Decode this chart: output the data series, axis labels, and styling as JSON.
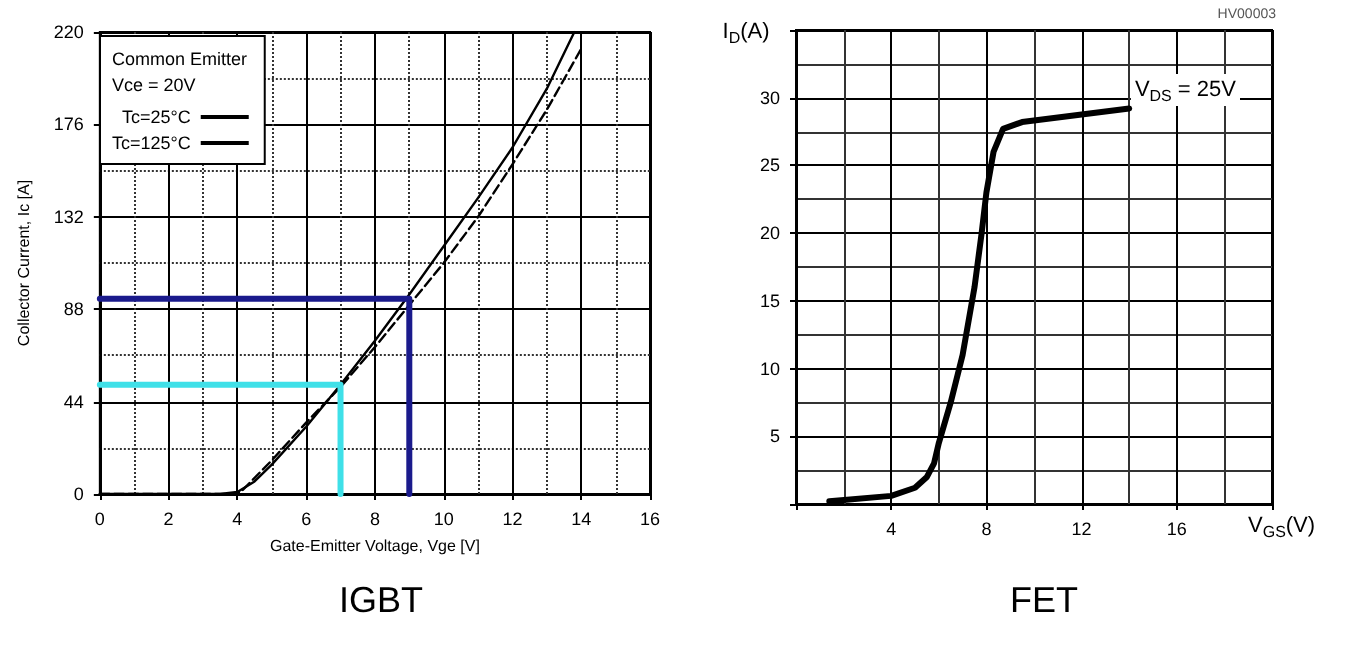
{
  "chart_data": [
    {
      "type": "line",
      "title": "IGBT",
      "xlabel": "Gate-Emitter Voltage, Vge [V]",
      "ylabel": "Collector Current, Ic [A]",
      "legend_title": "Common Emitter\nVce = 20V",
      "xlim": [
        0,
        16
      ],
      "xticks": [
        0,
        2,
        4,
        6,
        8,
        10,
        12,
        14,
        16
      ],
      "ylim": [
        0,
        220
      ],
      "yticks": [
        0,
        44,
        88,
        132,
        176,
        220
      ],
      "grid": true,
      "legend": "top left",
      "marker": "none",
      "series": [
        {
          "name": "Tc=25°C",
          "color": "#000000",
          "line_style": "solid",
          "x": [
            0,
            3.5,
            4,
            4.5,
            5,
            6,
            7,
            8,
            9,
            10,
            11,
            12,
            13,
            13.8
          ],
          "values": [
            0,
            0,
            1,
            6,
            14,
            32,
            52,
            73,
            95,
            118,
            141,
            165,
            193,
            220
          ]
        },
        {
          "name": "Tc=125°C",
          "color": "#000000",
          "line_style": "dashed",
          "x": [
            0,
            3.8,
            4.1,
            5,
            6,
            7,
            8,
            9,
            10,
            11,
            12,
            13,
            14
          ],
          "values": [
            0,
            0,
            1,
            16,
            34,
            51,
            70,
            90,
            110,
            132,
            157,
            183,
            212
          ]
        },
        {
          "color": "#1a1a8c",
          "line_style": "solid",
          "x": [
            0,
            9,
            9
          ],
          "values": [
            93,
            93,
            0
          ]
        },
        {
          "color": "#3fe0e8",
          "line_style": "solid",
          "x": [
            0,
            7,
            7
          ],
          "values": [
            52,
            52,
            0
          ]
        }
      ]
    },
    {
      "type": "line",
      "title": "FET",
      "xlabel": "V$_{GS}$(V)",
      "ylabel": "I$_{D}$(A)",
      "annotations": [
        "V$_{DS}$ = 25V",
        "HV00003"
      ],
      "xlim": [
        0,
        20
      ],
      "xticks": [
        {
          "value": 0,
          "label": null
        },
        4,
        8,
        12,
        16,
        {
          "value": 20,
          "label": null
        }
      ],
      "ylim": [
        0,
        35
      ],
      "yticks": [
        {
          "value": 0,
          "label": null
        },
        5,
        10,
        15,
        20,
        25,
        30,
        {
          "value": 35,
          "label": null
        }
      ],
      "grid": true,
      "marker": "none",
      "series": [
        {
          "color": "#000000",
          "line_style": "solid",
          "x": [
            1.4,
            4,
            5,
            5.5,
            5.8,
            6,
            6.5,
            7,
            7.5,
            7.8,
            8,
            8.3,
            8.7,
            9.5,
            14
          ],
          "values": [
            0.2,
            0.6,
            1.2,
            2,
            3,
            4.5,
            7.5,
            11,
            16,
            20,
            23,
            26,
            27.7,
            28.2,
            29.2
          ]
        }
      ]
    }
  ]
}
